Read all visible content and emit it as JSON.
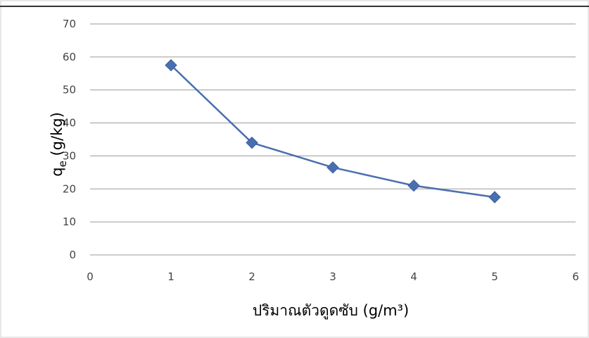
{
  "chart_data": {
    "type": "line",
    "title": "",
    "xlabel": "ปริมาณตัวดูดซับ (g/m³)",
    "ylabel": "qe (g/kg)",
    "ylabel_main": "q",
    "ylabel_sub": "e",
    "ylabel_rest": " (g/kg)",
    "xlim": [
      0,
      6
    ],
    "ylim": [
      0,
      70
    ],
    "x_ticks": [
      "0",
      "1",
      "2",
      "3",
      "4",
      "5",
      "6"
    ],
    "y_ticks": [
      "0",
      "10",
      "20",
      "30",
      "40",
      "50",
      "60",
      "70"
    ],
    "grid": "horizontal",
    "legend": "none",
    "series": [
      {
        "x": [
          1,
          2,
          3,
          4,
          5
        ],
        "y": [
          57.5,
          34,
          26.5,
          21,
          17.5
        ],
        "color": "#4a6fb0"
      }
    ]
  }
}
